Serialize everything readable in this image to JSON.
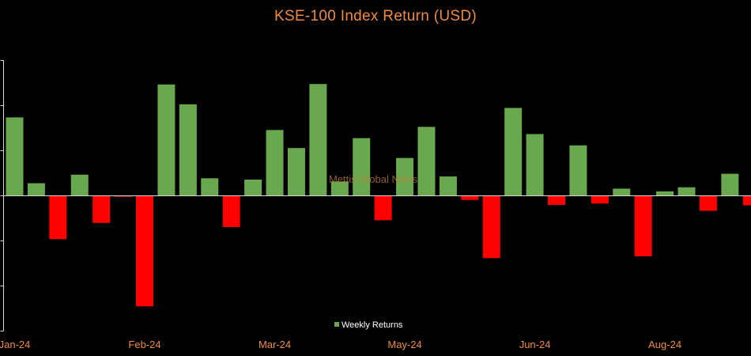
{
  "colors": {
    "background": "#000000",
    "title": "#F08A3C",
    "tick_label": "#F08A3C",
    "positive": "#6AA84F",
    "negative": "#FF0000",
    "axis": "#D9D9D9",
    "legend_text": "#FFFFFF",
    "watermark": "#C07A3A"
  },
  "watermark": "Mettis Global News",
  "chart_data": {
    "type": "bar",
    "title": "KSE-100 Index Return (USD)",
    "xlabel": "",
    "ylabel": "",
    "ylim": [
      -0.03,
      0.03
    ],
    "legend": {
      "position": "bottom-center",
      "label": "Weekly Returns"
    },
    "x_tick_labels": [
      "Jan-24",
      "Feb-24",
      "Mar-24",
      "May-24",
      "Jun-24",
      "Aug-24"
    ],
    "x_tick_bar_index": [
      0,
      6,
      12,
      18,
      24,
      30
    ],
    "series": [
      {
        "name": "Weekly Returns",
        "values": [
          0.0173,
          0.0027,
          -0.0097,
          0.0046,
          -0.0061,
          -0.0003,
          -0.0246,
          0.0246,
          0.0202,
          0.0038,
          -0.007,
          0.0035,
          0.0145,
          0.0105,
          0.0247,
          0.0031,
          0.0127,
          -0.0055,
          0.0083,
          0.0152,
          0.0042,
          -0.001,
          -0.0139,
          0.0194,
          0.0136,
          -0.0021,
          0.0111,
          -0.0018,
          0.0015,
          -0.0135,
          0.0009,
          0.0018,
          -0.0034,
          0.0048,
          -0.0022
        ]
      }
    ]
  }
}
